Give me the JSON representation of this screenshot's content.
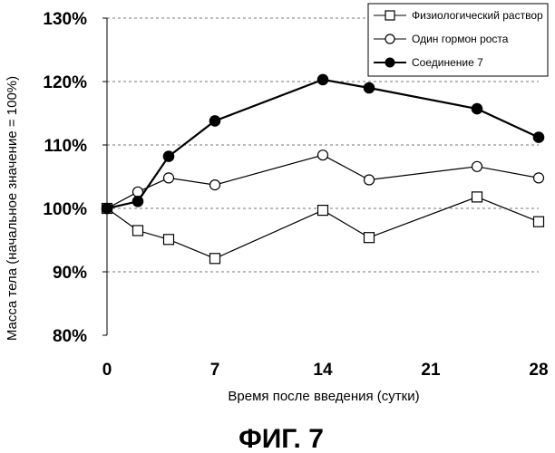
{
  "chart_data": {
    "type": "line",
    "xlabel": "Время после введения (сутки)",
    "ylabel": "Масса тела (начальное значение = 100%)",
    "xlim": [
      0,
      28
    ],
    "ylim": [
      80,
      130
    ],
    "x_ticks": [
      0,
      7,
      14,
      21,
      28
    ],
    "y_ticks": [
      80,
      90,
      100,
      110,
      120,
      130
    ],
    "y_tick_labels": [
      "80%",
      "90%",
      "100%",
      "110%",
      "120%",
      "130%"
    ],
    "grid": "horizontal dashed",
    "legend_position": "top-right",
    "series": [
      {
        "name": "Физиологический раствор",
        "marker": "open-square",
        "x": [
          0,
          2,
          4,
          7,
          14,
          17,
          24,
          28
        ],
        "values": [
          100,
          96.5,
          95.1,
          92.1,
          99.7,
          95.4,
          101.8,
          97.9
        ]
      },
      {
        "name": "Один гормон роста",
        "marker": "open-circle",
        "x": [
          0,
          2,
          4,
          7,
          14,
          17,
          24,
          28
        ],
        "values": [
          100,
          102.6,
          104.8,
          103.7,
          108.4,
          104.5,
          106.6,
          104.8
        ]
      },
      {
        "name": "Соединение 7",
        "marker": "filled-circle",
        "x": [
          0,
          2,
          4,
          7,
          14,
          17,
          24,
          28
        ],
        "values": [
          100,
          101.1,
          108.2,
          113.8,
          120.3,
          119,
          115.7,
          111.2
        ]
      }
    ]
  },
  "caption": "ФИГ. 7",
  "colors": {
    "line": "#000000",
    "grid": "#777777",
    "background": "#ffffff"
  }
}
